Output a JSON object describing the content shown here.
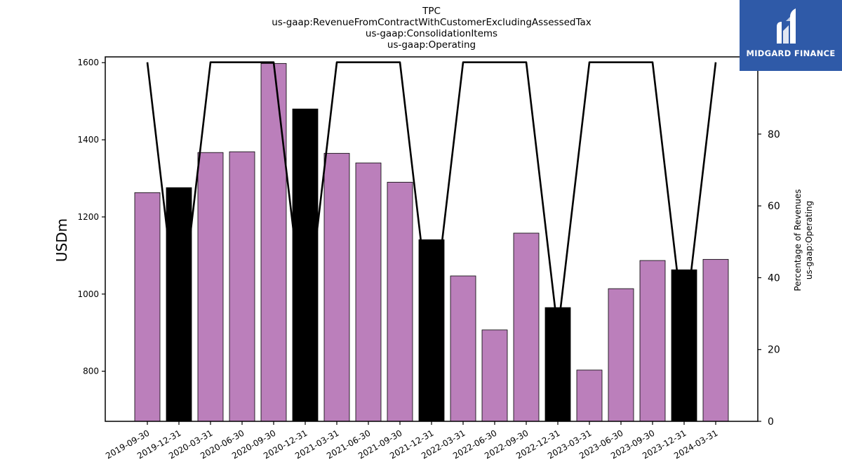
{
  "header": {
    "title_lines": [
      "TPC",
      "us-gaap:RevenueFromContractWithCustomerExcludingAssessedTax",
      "us-gaap:ConsolidationItems",
      "us-gaap:Operating"
    ]
  },
  "logo": {
    "text": "MIDGARD FINANCE",
    "color": "#2f5aa8"
  },
  "chart_data": {
    "type": "bar",
    "categories": [
      "2019-09-30",
      "2019-12-31",
      "2020-03-31",
      "2020-06-30",
      "2020-09-30",
      "2020-12-31",
      "2021-03-31",
      "2021-06-30",
      "2021-09-30",
      "2021-12-31",
      "2022-03-31",
      "2022-06-30",
      "2022-09-30",
      "2022-12-31",
      "2023-03-31",
      "2023-06-30",
      "2023-09-30",
      "2023-12-31",
      "2024-03-31"
    ],
    "series": [
      {
        "type": "bar",
        "axis": "left",
        "values": [
          1263,
          1276,
          1367,
          1369,
          1598,
          1480,
          1365,
          1340,
          1290,
          1141,
          1047,
          907,
          1158,
          965,
          803,
          1014,
          1087,
          1063,
          1090
        ],
        "colors": [
          "#bb7fbb",
          "#000000",
          "#bb7fbb",
          "#bb7fbb",
          "#bb7fbb",
          "#000000",
          "#bb7fbb",
          "#bb7fbb",
          "#bb7fbb",
          "#000000",
          "#bb7fbb",
          "#bb7fbb",
          "#bb7fbb",
          "#000000",
          "#bb7fbb",
          "#bb7fbb",
          "#bb7fbb",
          "#000000",
          "#bb7fbb"
        ]
      },
      {
        "type": "line",
        "axis": "right",
        "color": "#000000",
        "values": [
          100,
          25,
          100,
          100,
          100,
          25,
          100,
          100,
          100,
          25,
          100,
          100,
          100,
          25,
          100,
          100,
          100,
          25,
          100
        ]
      }
    ],
    "ylabel": "USDm",
    "y2label_lines": [
      "Percentage of Revenues",
      "us-gaap:Operating"
    ],
    "ylim": [
      670,
      1615
    ],
    "y2lim": [
      0,
      101.5
    ],
    "yticks": [
      800,
      1000,
      1200,
      1400,
      1600
    ],
    "y2ticks": [
      0,
      20,
      40,
      60,
      80,
      100
    ],
    "grid": false,
    "legend": "none"
  }
}
